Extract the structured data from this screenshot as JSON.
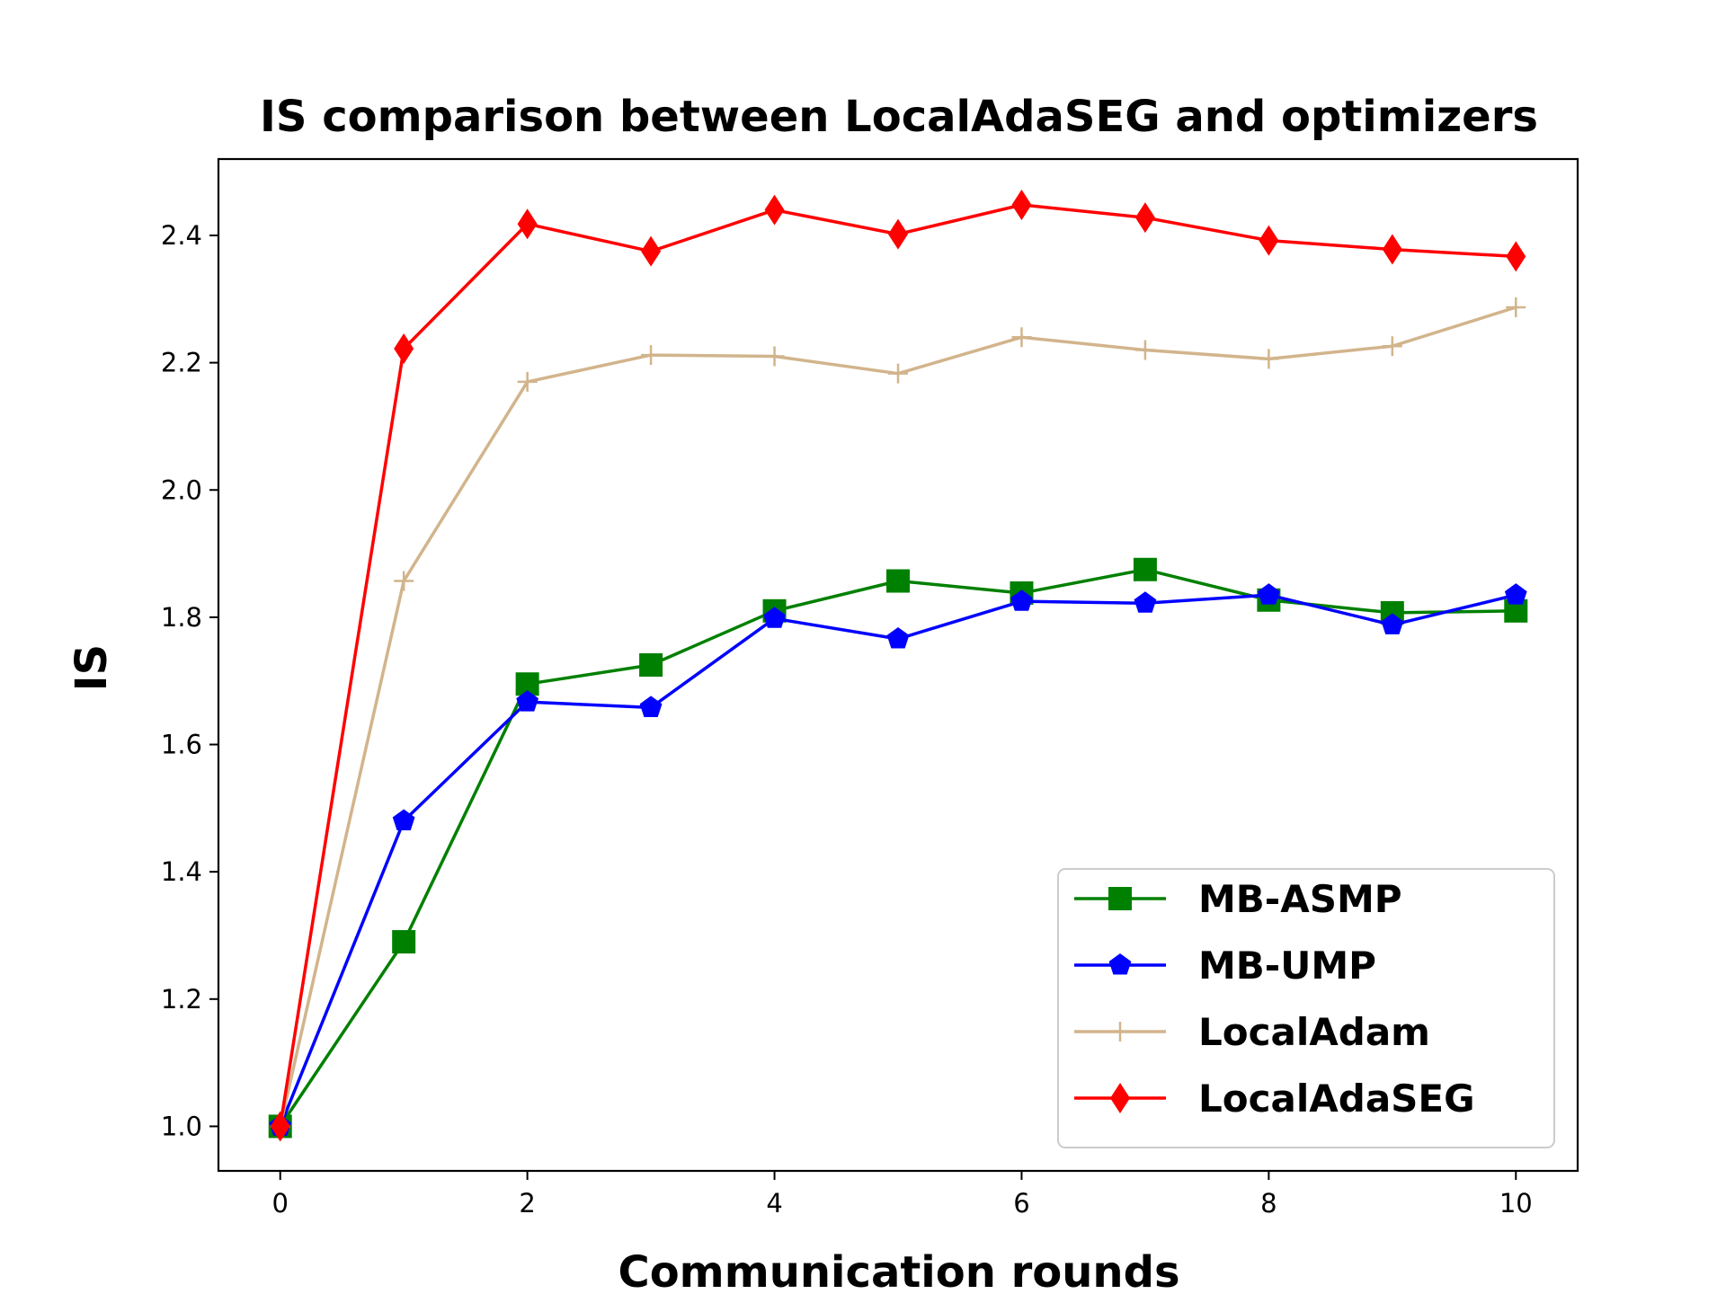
{
  "chart_data": {
    "type": "line",
    "title": "IS comparison between LocalAdaSEG and optimizers",
    "xlabel": "Communication rounds",
    "ylabel": "IS",
    "x": [
      0,
      1,
      2,
      3,
      4,
      5,
      6,
      7,
      8,
      9,
      10
    ],
    "xlim": [
      -0.5,
      10.5
    ],
    "ylim": [
      0.93,
      2.52
    ],
    "xticks": [
      0,
      2,
      4,
      6,
      8,
      10
    ],
    "xtick_labels": [
      "0",
      "2",
      "4",
      "6",
      "8",
      "10"
    ],
    "yticks": [
      1.0,
      1.2,
      1.4,
      1.6,
      1.8,
      2.0,
      2.2,
      2.4
    ],
    "ytick_labels": [
      "1.0",
      "1.2",
      "1.4",
      "1.6",
      "1.8",
      "2.0",
      "2.2",
      "2.4"
    ],
    "grid": false,
    "legend_position": "lower-right",
    "series": [
      {
        "name": "MB-ASMP",
        "color": "#008000",
        "marker": "square",
        "values": [
          1.0,
          1.29,
          1.695,
          1.725,
          1.81,
          1.857,
          1.838,
          1.875,
          1.827,
          1.807,
          1.81
        ]
      },
      {
        "name": "MB-UMP",
        "color": "#0000ff",
        "marker": "pentagon",
        "values": [
          1.0,
          1.48,
          1.667,
          1.658,
          1.798,
          1.766,
          1.825,
          1.822,
          1.835,
          1.788,
          1.835
        ]
      },
      {
        "name": "LocalAdam",
        "color": "#d2b48c",
        "marker": "plus",
        "values": [
          1.0,
          1.857,
          2.17,
          2.212,
          2.21,
          2.183,
          2.24,
          2.22,
          2.206,
          2.226,
          2.287
        ]
      },
      {
        "name": "LocalAdaSEG",
        "color": "#ff0000",
        "marker": "diamond",
        "values": [
          1.0,
          2.222,
          2.418,
          2.375,
          2.44,
          2.402,
          2.448,
          2.428,
          2.392,
          2.378,
          2.367
        ]
      }
    ]
  }
}
